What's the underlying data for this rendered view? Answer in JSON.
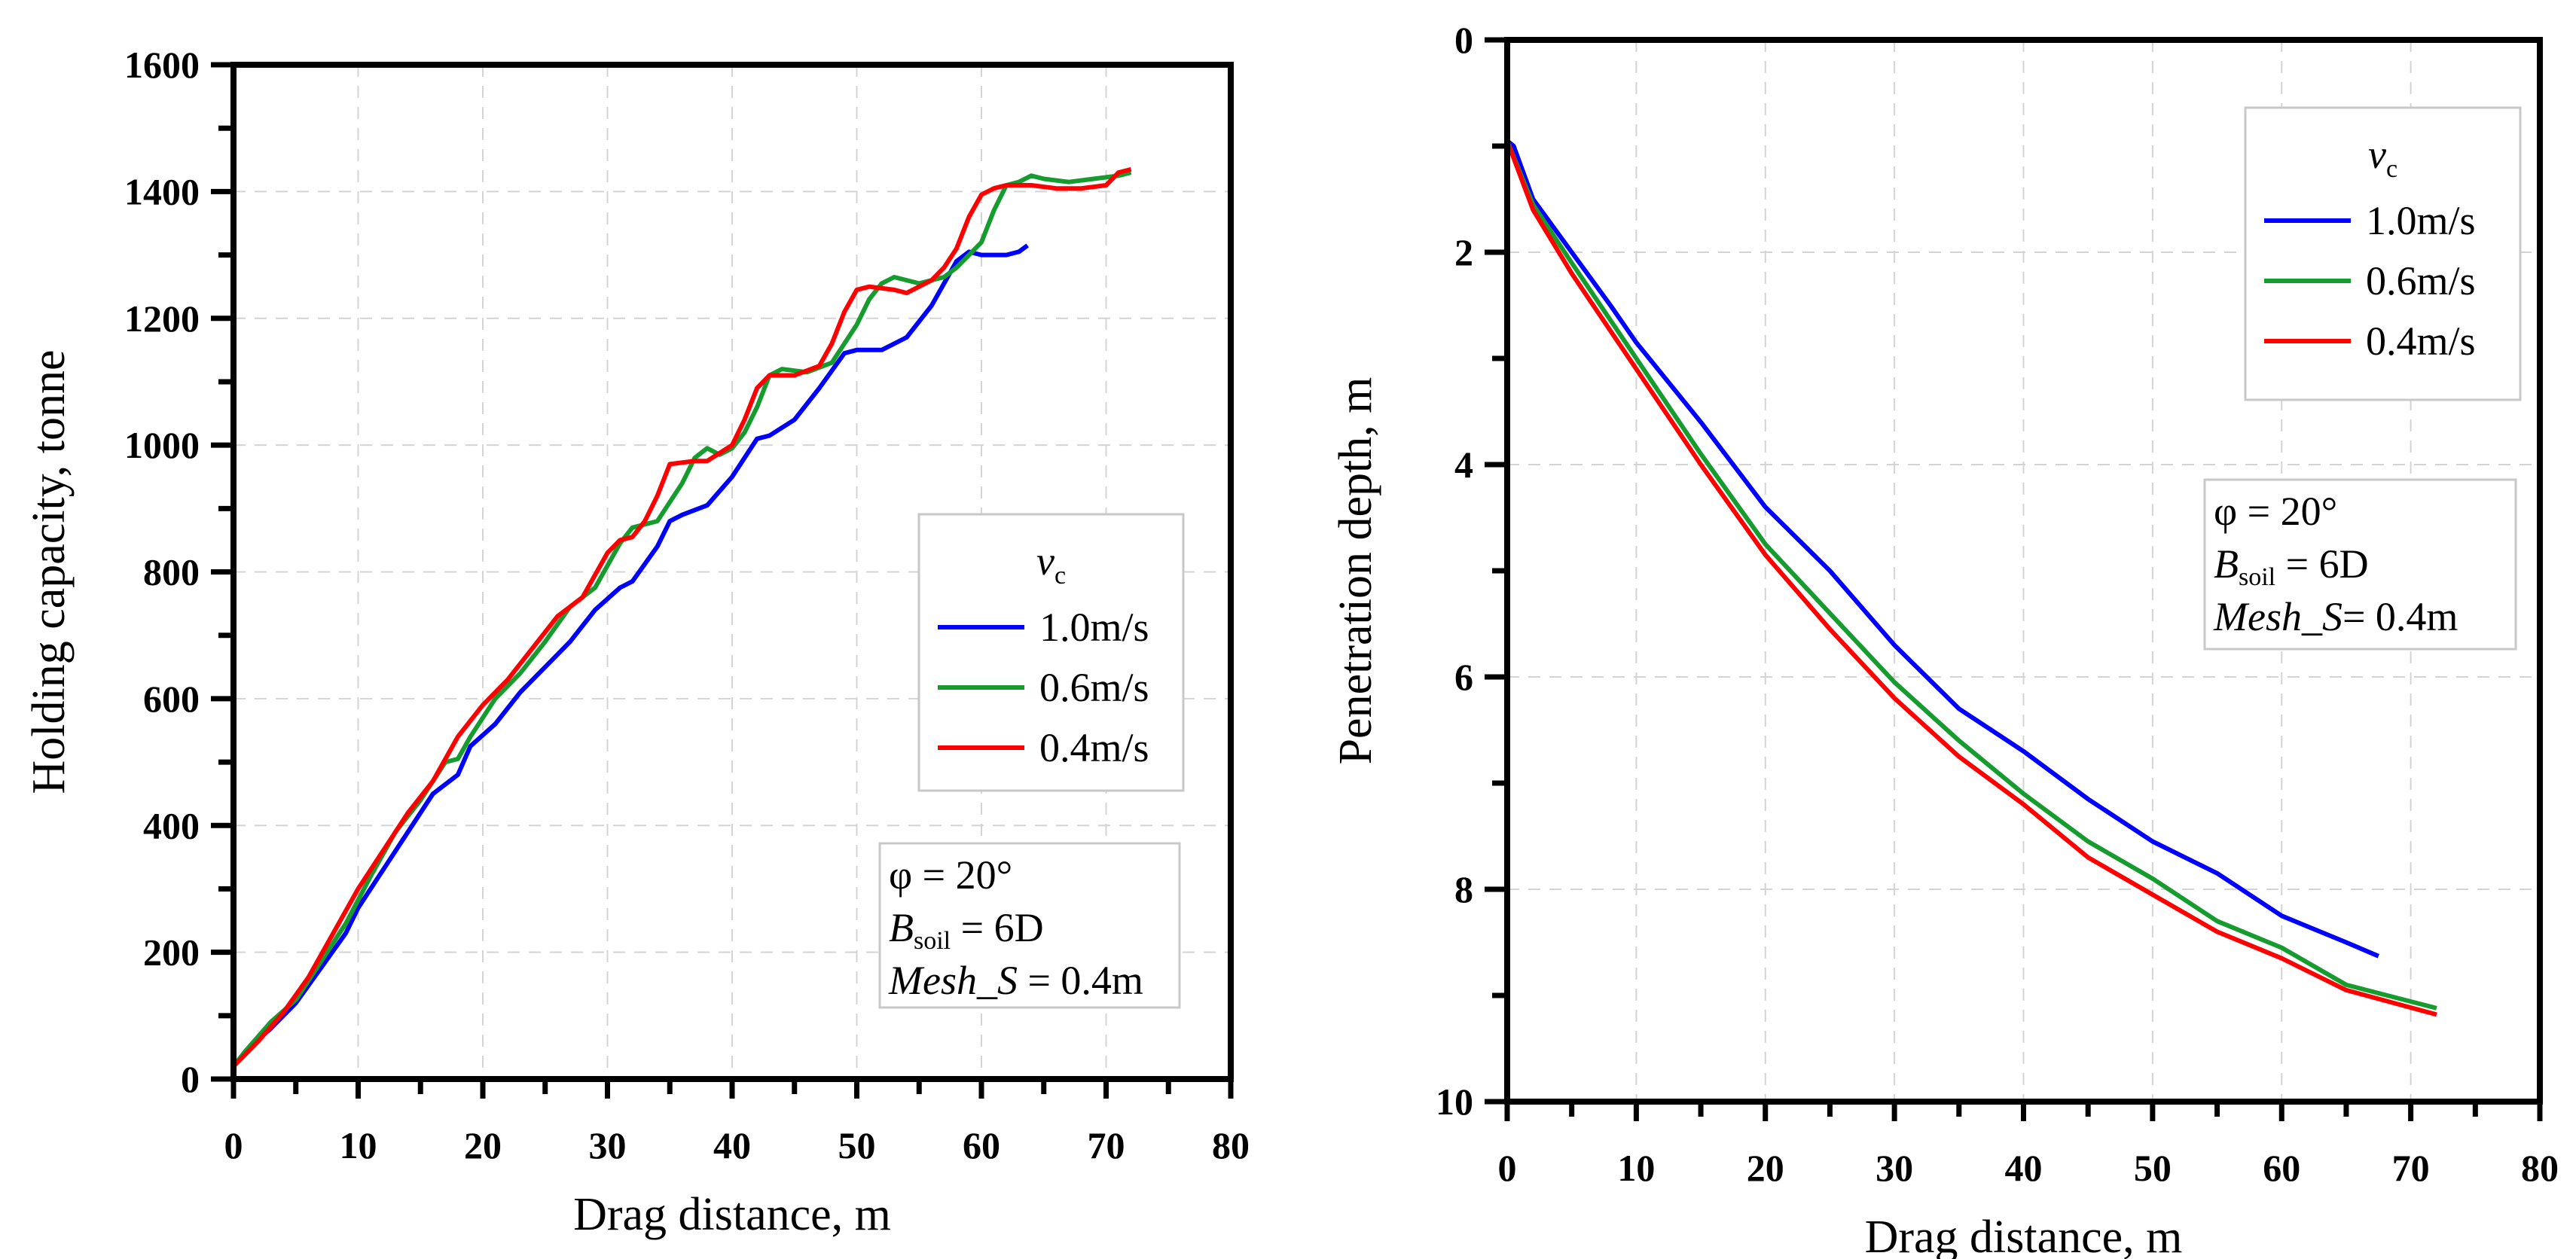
{
  "chart_data": [
    {
      "type": "line",
      "xlabel": "Drag distance, m",
      "ylabel": "Holding capacity, tonne",
      "xlim": [
        0,
        80
      ],
      "ylim": [
        0,
        1600
      ],
      "xticks": [
        0,
        10,
        20,
        30,
        40,
        50,
        60,
        70,
        80
      ],
      "yticks": [
        0,
        200,
        400,
        600,
        800,
        1000,
        1200,
        1400,
        1600
      ],
      "y_inverted": false,
      "grid": true,
      "legend_title": "v",
      "legend_title_sub": "c",
      "legend_placement": "right-middle",
      "annotation": {
        "phi": "φ = 20°",
        "b": "B",
        "b_sub": "soil",
        "b_rest": " = 6D",
        "mesh": "Mesh_S",
        "mesh_rest": " = 0.4m"
      },
      "series": [
        {
          "name": "1.0m/s",
          "color": "#0000ff",
          "x": [
            0,
            1,
            3,
            5,
            7,
            9,
            10,
            12,
            14,
            16,
            18,
            19,
            21,
            23,
            25,
            27,
            29,
            31,
            32,
            34,
            35,
            36,
            38,
            40,
            42,
            43,
            45,
            47,
            49,
            50,
            52,
            54,
            56,
            58,
            59,
            60,
            61,
            62,
            63,
            63.7
          ],
          "y": [
            20,
            45,
            80,
            120,
            175,
            230,
            270,
            330,
            390,
            450,
            480,
            525,
            560,
            610,
            650,
            690,
            740,
            775,
            785,
            840,
            880,
            890,
            905,
            950,
            1010,
            1015,
            1040,
            1090,
            1145,
            1150,
            1150,
            1170,
            1220,
            1290,
            1305,
            1300,
            1300,
            1300,
            1305,
            1315
          ]
        },
        {
          "name": "0.6m/s",
          "color": "#169c2e",
          "x": [
            0,
            1,
            3,
            5,
            7,
            9,
            11,
            13,
            15,
            17,
            18,
            19,
            21,
            23,
            25,
            27,
            29,
            31,
            32,
            34,
            36,
            37,
            38,
            39,
            40,
            41,
            42,
            43,
            44,
            46,
            48,
            49,
            50,
            51,
            52,
            53,
            55,
            57,
            58,
            59,
            60,
            61,
            62,
            63,
            64,
            65,
            67,
            69,
            71,
            72
          ],
          "y": [
            20,
            45,
            90,
            125,
            185,
            245,
            320,
            390,
            440,
            500,
            505,
            540,
            600,
            640,
            690,
            745,
            775,
            845,
            870,
            880,
            940,
            980,
            995,
            985,
            995,
            1020,
            1060,
            1110,
            1120,
            1115,
            1130,
            1160,
            1190,
            1230,
            1255,
            1265,
            1255,
            1265,
            1280,
            1300,
            1320,
            1370,
            1410,
            1415,
            1425,
            1420,
            1415,
            1420,
            1425,
            1430
          ]
        },
        {
          "name": "0.4m/s",
          "color": "#ff0000",
          "x": [
            0,
            2,
            4,
            6,
            8,
            10,
            12,
            14,
            16,
            18,
            20,
            22,
            24,
            26,
            28,
            30,
            31,
            32,
            33,
            34,
            35,
            37,
            38,
            40,
            41,
            42,
            43,
            45,
            47,
            48,
            49,
            50,
            51,
            53,
            54,
            56,
            57,
            58,
            59,
            60,
            61,
            62,
            64,
            66,
            68,
            70,
            71,
            72
          ],
          "y": [
            20,
            60,
            105,
            160,
            230,
            300,
            360,
            420,
            470,
            540,
            590,
            630,
            680,
            730,
            760,
            830,
            850,
            855,
            880,
            920,
            970,
            975,
            975,
            1000,
            1040,
            1090,
            1110,
            1110,
            1125,
            1160,
            1210,
            1245,
            1250,
            1245,
            1240,
            1260,
            1280,
            1310,
            1360,
            1395,
            1405,
            1410,
            1410,
            1405,
            1405,
            1410,
            1430,
            1435
          ]
        }
      ]
    },
    {
      "type": "line",
      "xlabel": "Drag distance, m",
      "ylabel": "Penetration depth, m",
      "xlim": [
        0,
        80
      ],
      "ylim": [
        0,
        10
      ],
      "xticks": [
        0,
        10,
        20,
        30,
        40,
        50,
        60,
        70,
        80
      ],
      "yticks": [
        0,
        2,
        4,
        6,
        8,
        10
      ],
      "y_inverted": true,
      "grid": true,
      "legend_title": "v",
      "legend_title_sub": "c",
      "legend_placement": "top-right",
      "annotation": {
        "phi": "φ = 20°",
        "b": "B",
        "b_sub": "soil",
        "b_rest": " = 6D",
        "mesh": "Mesh_S",
        "mesh_rest": "= 0.4m"
      },
      "series": [
        {
          "name": "1.0m/s",
          "color": "#0000ff",
          "x": [
            0,
            0.5,
            2,
            5,
            8,
            10,
            15,
            20,
            25,
            30,
            35,
            40,
            45,
            50,
            55,
            60,
            65,
            67.5
          ],
          "y": [
            0.95,
            1.0,
            1.5,
            2.0,
            2.5,
            2.85,
            3.6,
            4.4,
            5.0,
            5.7,
            6.3,
            6.7,
            7.15,
            7.55,
            7.85,
            8.25,
            8.5,
            8.63
          ]
        },
        {
          "name": "0.6m/s",
          "color": "#169c2e",
          "x": [
            0,
            2,
            5,
            10,
            15,
            20,
            25,
            30,
            35,
            40,
            45,
            50,
            55,
            60,
            65,
            72
          ],
          "y": [
            0.95,
            1.55,
            2.1,
            3.0,
            3.9,
            4.75,
            5.4,
            6.05,
            6.6,
            7.1,
            7.55,
            7.9,
            8.3,
            8.55,
            8.9,
            9.12
          ]
        },
        {
          "name": "0.4m/s",
          "color": "#ff0000",
          "x": [
            0,
            2,
            5,
            10,
            15,
            20,
            25,
            30,
            35,
            40,
            45,
            50,
            55,
            60,
            65,
            72
          ],
          "y": [
            0.95,
            1.6,
            2.2,
            3.1,
            4.0,
            4.85,
            5.55,
            6.2,
            6.75,
            7.2,
            7.7,
            8.05,
            8.4,
            8.65,
            8.95,
            9.18
          ]
        }
      ]
    }
  ]
}
